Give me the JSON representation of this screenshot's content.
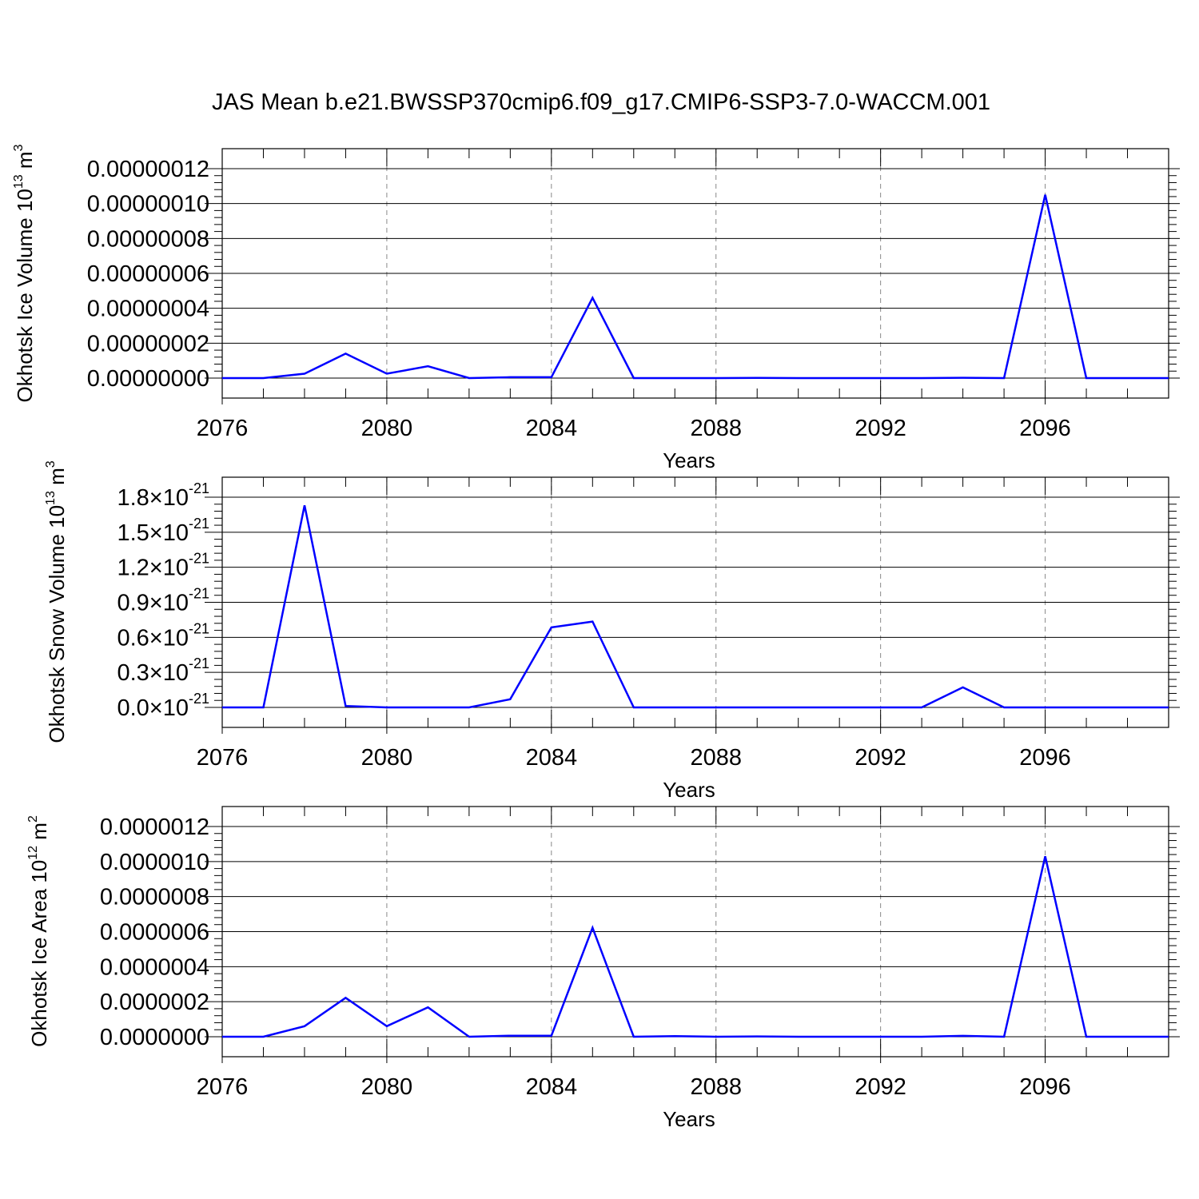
{
  "title": "JAS Mean b.e21.BWSSP370cmip6.f09_g17.CMIP6-SSP3-7.0-WACCM.001",
  "colors": {
    "line": "#0000ff",
    "axis": "#000000",
    "grid": "#888888"
  },
  "chart_data": [
    {
      "type": "line",
      "ylabel_base": "Okhotsk Ice Volume 10",
      "ylabel_exp": "13",
      "ylabel_unit": " m",
      "ylabel_unit_exp": "3",
      "xlabel": "Years",
      "xlim": [
        2076,
        2099
      ],
      "ylim": [
        0,
        1.2e-07
      ],
      "x_ticks": [
        "2076",
        "2080",
        "2084",
        "2088",
        "2092",
        "2096"
      ],
      "y_ticks": [
        {
          "value": 0,
          "mantissa": "0.00000000"
        },
        {
          "value": 2e-08,
          "mantissa": "0.00000002"
        },
        {
          "value": 4e-08,
          "mantissa": "0.00000004"
        },
        {
          "value": 6e-08,
          "mantissa": "0.00000006"
        },
        {
          "value": 8e-08,
          "mantissa": "0.00000008"
        },
        {
          "value": 1e-07,
          "mantissa": "0.00000010"
        },
        {
          "value": 1.2e-07,
          "mantissa": "0.00000012"
        }
      ],
      "x": [
        2076,
        2077,
        2078,
        2079,
        2080,
        2081,
        2082,
        2083,
        2084,
        2085,
        2086,
        2087,
        2088,
        2089,
        2090,
        2091,
        2092,
        2093,
        2094,
        2095,
        2096,
        2097,
        2098,
        2099
      ],
      "values": [
        0,
        0,
        2.5e-09,
        1.4e-08,
        2.5e-09,
        6.8e-09,
        0,
        5e-10,
        5e-10,
        4.6e-08,
        0,
        0,
        0,
        1e-10,
        0,
        0,
        0,
        0,
        2e-10,
        0,
        1.05e-07,
        0,
        0,
        0
      ],
      "grid": "dashed vertical at major x ticks"
    },
    {
      "type": "line",
      "ylabel_base": "Okhotsk Snow Volume 10",
      "ylabel_exp": "13",
      "ylabel_unit": " m",
      "ylabel_unit_exp": "3",
      "xlabel": "Years",
      "xlim": [
        2076,
        2099
      ],
      "ylim": [
        0,
        1.8e-21
      ],
      "x_ticks": [
        "2076",
        "2080",
        "2084",
        "2088",
        "2092",
        "2096"
      ],
      "y_ticks": [
        {
          "value": 0,
          "mantissa": "0.0",
          "times": "×10",
          "exp": "-21"
        },
        {
          "value": 3e-22,
          "mantissa": "0.3",
          "times": "×10",
          "exp": "-21"
        },
        {
          "value": 6e-22,
          "mantissa": "0.6",
          "times": "×10",
          "exp": "-21"
        },
        {
          "value": 9e-22,
          "mantissa": "0.9",
          "times": "×10",
          "exp": "-21"
        },
        {
          "value": 1.2e-21,
          "mantissa": "1.2",
          "times": "×10",
          "exp": "-21"
        },
        {
          "value": 1.5e-21,
          "mantissa": "1.5",
          "times": "×10",
          "exp": "-21"
        },
        {
          "value": 1.8e-21,
          "mantissa": "1.8",
          "times": "×10",
          "exp": "-21"
        }
      ],
      "x": [
        2076,
        2077,
        2078,
        2079,
        2080,
        2081,
        2082,
        2083,
        2084,
        2085,
        2086,
        2087,
        2088,
        2089,
        2090,
        2091,
        2092,
        2093,
        2094,
        2095,
        2096,
        2097,
        2098,
        2099
      ],
      "values": [
        0,
        0,
        1.73e-21,
        1.2e-23,
        0,
        0,
        0,
        7e-23,
        6.85e-22,
        7.35e-22,
        0,
        0,
        0,
        0,
        0,
        0,
        0,
        0,
        1.72e-22,
        0,
        0,
        0,
        0,
        0
      ],
      "grid": "dashed vertical at major x ticks"
    },
    {
      "type": "line",
      "ylabel_base": "Okhotsk Ice Area 10",
      "ylabel_exp": "12",
      "ylabel_unit": " m",
      "ylabel_unit_exp": "2",
      "xlabel": "Years",
      "xlim": [
        2076,
        2099
      ],
      "ylim": [
        0,
        1.2e-06
      ],
      "x_ticks": [
        "2076",
        "2080",
        "2084",
        "2088",
        "2092",
        "2096"
      ],
      "y_ticks": [
        {
          "value": 0,
          "mantissa": "0.0000000"
        },
        {
          "value": 2e-07,
          "mantissa": "0.0000002"
        },
        {
          "value": 4e-07,
          "mantissa": "0.0000004"
        },
        {
          "value": 6e-07,
          "mantissa": "0.0000006"
        },
        {
          "value": 8e-07,
          "mantissa": "0.0000008"
        },
        {
          "value": 1e-06,
          "mantissa": "0.0000010"
        },
        {
          "value": 1.2e-06,
          "mantissa": "0.0000012"
        }
      ],
      "x": [
        2076,
        2077,
        2078,
        2079,
        2080,
        2081,
        2082,
        2083,
        2084,
        2085,
        2086,
        2087,
        2088,
        2089,
        2090,
        2091,
        2092,
        2093,
        2094,
        2095,
        2096,
        2097,
        2098,
        2099
      ],
      "values": [
        0,
        0,
        6e-08,
        2.22e-07,
        6e-08,
        1.68e-07,
        0,
        6e-09,
        6e-09,
        6.22e-07,
        0,
        3e-09,
        0,
        2e-09,
        0,
        0,
        0,
        0,
        5e-09,
        0,
        1.03e-06,
        0,
        0,
        0
      ],
      "grid": "dashed vertical at major x ticks"
    }
  ]
}
